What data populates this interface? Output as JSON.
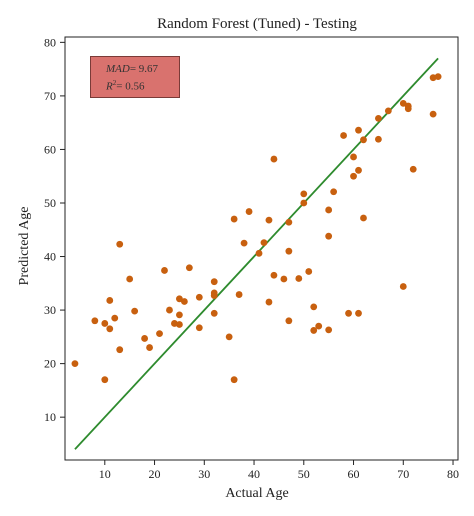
{
  "chart_data": {
    "type": "scatter",
    "title": "Random Forest (Tuned) - Testing",
    "xlabel": "Actual Age",
    "ylabel": "Predicted Age",
    "xlim": [
      2,
      81
    ],
    "ylim": [
      2,
      81
    ],
    "xticks": [
      10,
      20,
      30,
      40,
      50,
      60,
      70,
      80
    ],
    "yticks": [
      10,
      20,
      30,
      40,
      50,
      60,
      70,
      80
    ],
    "grid": false,
    "point_color": "#c8600f",
    "line_color": "#2e8b2e",
    "fit_line": {
      "x": [
        4,
        77
      ],
      "y": [
        4,
        77
      ]
    },
    "annotation": {
      "mad_label": "MAD",
      "mad_value": "= 9.67",
      "r2_label": "R",
      "r2_sup": "2",
      "r2_value": "= 0.56"
    },
    "points": [
      [
        4,
        20
      ],
      [
        8,
        28
      ],
      [
        10,
        17
      ],
      [
        10,
        27.5
      ],
      [
        11,
        26.5
      ],
      [
        11,
        31.8
      ],
      [
        12,
        28.5
      ],
      [
        13,
        22.6
      ],
      [
        13,
        42.3
      ],
      [
        15,
        35.8
      ],
      [
        16,
        29.8
      ],
      [
        18,
        24.7
      ],
      [
        19,
        23
      ],
      [
        21,
        25.6
      ],
      [
        22,
        37.4
      ],
      [
        23,
        30
      ],
      [
        24,
        27.5
      ],
      [
        25,
        27.3
      ],
      [
        25,
        29.1
      ],
      [
        25,
        32.1
      ],
      [
        26,
        31.6
      ],
      [
        27,
        37.9
      ],
      [
        29,
        26.7
      ],
      [
        29,
        32.4
      ],
      [
        32,
        29.4
      ],
      [
        32,
        32.7
      ],
      [
        32,
        33.2
      ],
      [
        32,
        35.3
      ],
      [
        35,
        25
      ],
      [
        36,
        17
      ],
      [
        36,
        47
      ],
      [
        37,
        32.9
      ],
      [
        38,
        42.5
      ],
      [
        39,
        48.4
      ],
      [
        41,
        40.6
      ],
      [
        42,
        42.6
      ],
      [
        43,
        31.5
      ],
      [
        43,
        46.8
      ],
      [
        44,
        36.5
      ],
      [
        44,
        58.2
      ],
      [
        46,
        35.8
      ],
      [
        47,
        28
      ],
      [
        47,
        41
      ],
      [
        47,
        46.4
      ],
      [
        49,
        35.9
      ],
      [
        50,
        50
      ],
      [
        50,
        51.7
      ],
      [
        51,
        37.2
      ],
      [
        52,
        26.2
      ],
      [
        52,
        30.6
      ],
      [
        53,
        27
      ],
      [
        55,
        26.3
      ],
      [
        55,
        43.8
      ],
      [
        55,
        48.7
      ],
      [
        56,
        52.1
      ],
      [
        58,
        62.6
      ],
      [
        59,
        29.4
      ],
      [
        60,
        55
      ],
      [
        60,
        58.6
      ],
      [
        61,
        29.4
      ],
      [
        61,
        56.1
      ],
      [
        61,
        63.6
      ],
      [
        62,
        47.2
      ],
      [
        62,
        61.8
      ],
      [
        65,
        61.9
      ],
      [
        65,
        65.8
      ],
      [
        67,
        67.2
      ],
      [
        70,
        34.4
      ],
      [
        70,
        68.6
      ],
      [
        71,
        67.6
      ],
      [
        71,
        68.1
      ],
      [
        72,
        56.3
      ],
      [
        76,
        66.6
      ],
      [
        76,
        73.4
      ],
      [
        77,
        73.6
      ]
    ]
  }
}
